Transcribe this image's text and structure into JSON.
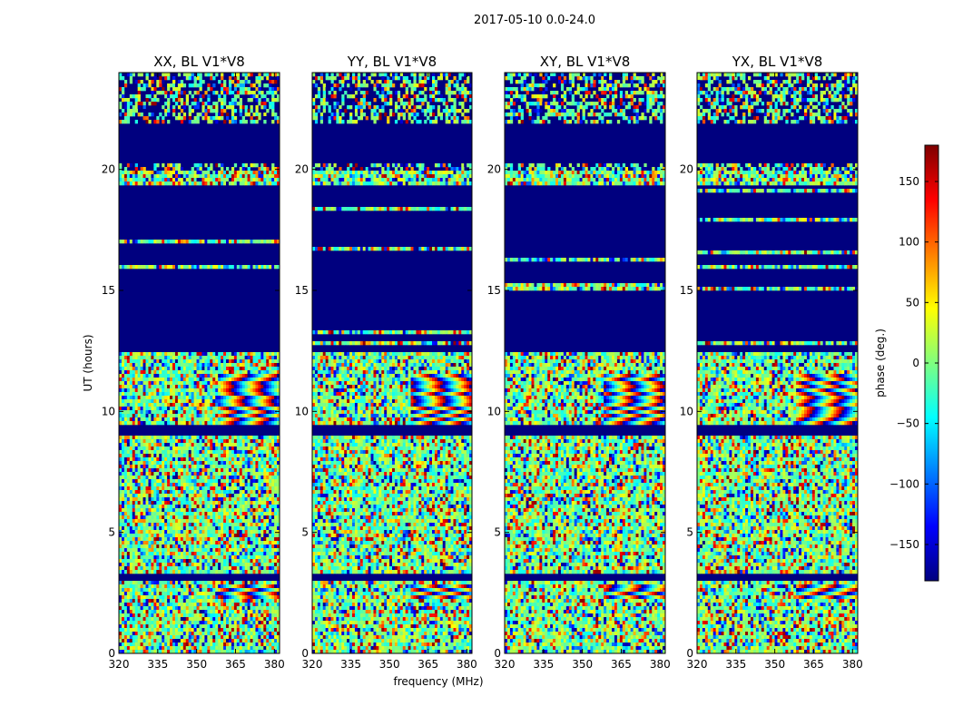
{
  "chart_data": {
    "type": "heatmap",
    "title": "2017-05-10 0.0-24.0",
    "xlabel": "frequency (MHz)",
    "ylabel": "UT (hours)",
    "xlim": [
      320,
      382
    ],
    "ylim": [
      0,
      24
    ],
    "xticks": [
      "320",
      "335",
      "350",
      "365",
      "380"
    ],
    "yticks": [
      "0",
      "5",
      "10",
      "15",
      "20"
    ],
    "panels": [
      {
        "title": "XX, BL V1*V8",
        "seed": 11
      },
      {
        "title": "YY, BL V1*V8",
        "seed": 23
      },
      {
        "title": "XY, BL V1*V8",
        "seed": 37
      },
      {
        "title": "YX, BL V1*V8",
        "seed": 53
      }
    ],
    "masked_hour_ranges": [
      [
        12.4,
        19.4
      ],
      [
        20.3,
        21.9
      ],
      [
        9.0,
        9.4
      ],
      [
        3.0,
        3.3
      ]
    ],
    "colorbar": {
      "label": "phase (deg.)",
      "range": [
        -180,
        180
      ],
      "ticks": [
        "150",
        "100",
        "50",
        "0",
        "−50",
        "−100",
        "−150"
      ],
      "tick_values": [
        150,
        100,
        50,
        0,
        -50,
        -100,
        -150
      ]
    }
  }
}
